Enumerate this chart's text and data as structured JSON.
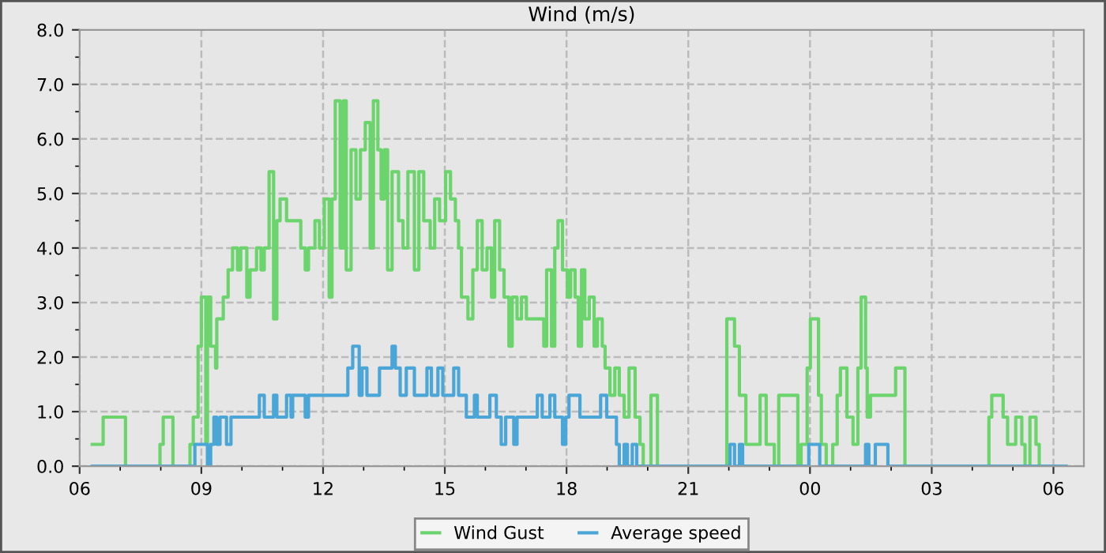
{
  "chart_data": {
    "type": "step",
    "title": "Wind (m/s)",
    "xlim": [
      6,
      30.75
    ],
    "ylim": [
      0,
      8
    ],
    "xticks": [
      {
        "value": 6,
        "label": "06"
      },
      {
        "value": 9,
        "label": "09"
      },
      {
        "value": 12,
        "label": "12"
      },
      {
        "value": 15,
        "label": "15"
      },
      {
        "value": 18,
        "label": "18"
      },
      {
        "value": 21,
        "label": "21"
      },
      {
        "value": 24,
        "label": "00"
      },
      {
        "value": 27,
        "label": "03"
      },
      {
        "value": 30,
        "label": "06"
      }
    ],
    "yticks": [
      {
        "value": 0,
        "label": "0.0"
      },
      {
        "value": 1,
        "label": "1.0"
      },
      {
        "value": 2,
        "label": "2.0"
      },
      {
        "value": 3,
        "label": "3.0"
      },
      {
        "value": 4,
        "label": "4.0"
      },
      {
        "value": 5,
        "label": "5.0"
      },
      {
        "value": 6,
        "label": "6.0"
      },
      {
        "value": 7,
        "label": "7.0"
      },
      {
        "value": 8,
        "label": "8.0"
      }
    ],
    "grid": true,
    "legend": "bottom",
    "line_style": "solid",
    "marker": "none",
    "series": [
      {
        "name": "Wind Gust",
        "color": "#6cd46c",
        "x": [
          6.31,
          6.58,
          7.13,
          7.98,
          8.06,
          8.3,
          8.72,
          8.8,
          8.92,
          9.0,
          9.11,
          9.15,
          9.23,
          9.35,
          9.38,
          9.54,
          9.66,
          9.77,
          9.89,
          9.97,
          10.12,
          10.2,
          10.36,
          10.47,
          10.55,
          10.67,
          10.78,
          10.86,
          10.94,
          11.1,
          11.45,
          11.56,
          11.64,
          11.8,
          11.91,
          12.03,
          12.15,
          12.22,
          12.3,
          12.42,
          12.5,
          12.57,
          12.69,
          12.81,
          12.92,
          13.04,
          13.16,
          13.24,
          13.35,
          13.43,
          13.51,
          13.59,
          13.7,
          13.86,
          13.97,
          14.09,
          14.25,
          14.36,
          14.48,
          14.64,
          14.75,
          14.87,
          15.02,
          15.14,
          15.26,
          15.34,
          15.41,
          15.57,
          15.69,
          15.8,
          15.92,
          16.04,
          16.15,
          16.23,
          16.35,
          16.46,
          16.58,
          16.66,
          16.78,
          16.89,
          17.01,
          17.28,
          17.44,
          17.51,
          17.63,
          17.71,
          17.79,
          17.9,
          18.02,
          18.1,
          18.21,
          18.29,
          18.37,
          18.45,
          18.56,
          18.68,
          18.76,
          18.88,
          18.95,
          19.07,
          19.19,
          19.3,
          19.42,
          19.54,
          19.69,
          19.81,
          19.89,
          20.08,
          20.24,
          21.95,
          22.14,
          22.26,
          22.42,
          22.77,
          22.92,
          23.12,
          23.23,
          23.7,
          23.78,
          23.93,
          24.01,
          24.21,
          24.28,
          24.4,
          24.56,
          24.67,
          24.75,
          24.91,
          25.06,
          25.18,
          25.26,
          25.37,
          25.41,
          25.49,
          26.11,
          26.34,
          28.41,
          28.48,
          28.64,
          28.76,
          28.87,
          28.99,
          29.07,
          29.22,
          29.3,
          29.42,
          29.57,
          29.65,
          30.31
        ],
        "values": [
          0.4,
          0.9,
          0,
          0.4,
          0.9,
          0,
          0.4,
          0.9,
          2.2,
          3.1,
          0.4,
          3.1,
          2.2,
          1.8,
          2.7,
          3.1,
          3.6,
          4.0,
          3.6,
          4.0,
          3.1,
          3.6,
          4.0,
          3.6,
          4.0,
          5.4,
          2.7,
          4.5,
          4.9,
          4.5,
          4.0,
          3.6,
          4.0,
          4.5,
          4.0,
          4.9,
          3.1,
          4.9,
          6.7,
          4.0,
          6.7,
          3.6,
          5.8,
          4.9,
          5.8,
          6.3,
          4.0,
          6.7,
          5.8,
          4.9,
          5.8,
          3.6,
          5.4,
          4.5,
          4.0,
          5.4,
          3.6,
          5.4,
          4.5,
          4.0,
          4.9,
          4.5,
          5.4,
          4.9,
          4.5,
          4.0,
          3.1,
          2.7,
          3.6,
          4.5,
          3.6,
          4.0,
          3.1,
          4.5,
          3.6,
          3.1,
          2.2,
          3.1,
          2.7,
          3.1,
          2.7,
          2.7,
          2.2,
          3.6,
          2.2,
          4.0,
          4.5,
          3.6,
          3.1,
          3.6,
          3.1,
          2.2,
          3.6,
          2.7,
          3.1,
          2.2,
          2.7,
          2.2,
          1.8,
          1.3,
          1.8,
          1.3,
          0.9,
          1.8,
          0.9,
          0.4,
          0,
          1.3,
          0,
          2.7,
          2.2,
          1.3,
          0.4,
          1.3,
          0.4,
          0,
          1.3,
          0,
          0.4,
          1.8,
          2.7,
          1.3,
          0.4,
          0,
          0.4,
          1.3,
          1.8,
          0.9,
          0.4,
          1.8,
          3.1,
          1.8,
          0.9,
          1.3,
          1.8,
          0,
          0.9,
          1.3,
          1.3,
          0.9,
          0.4,
          0.4,
          0.9,
          0.4,
          0,
          0.9,
          0.4,
          0,
          0
        ]
      },
      {
        "name": "Average speed",
        "color": "#4aa6d6",
        "x": [
          6.31,
          8.84,
          9.15,
          9.23,
          9.31,
          9.38,
          9.46,
          9.62,
          9.73,
          10.43,
          10.55,
          10.78,
          10.86,
          11.1,
          11.21,
          11.25,
          11.56,
          11.64,
          12.61,
          12.73,
          12.89,
          12.96,
          13.08,
          13.39,
          13.7,
          13.78,
          13.9,
          14.05,
          14.25,
          14.56,
          14.67,
          14.83,
          14.95,
          15.22,
          15.34,
          15.53,
          15.73,
          15.8,
          16.11,
          16.27,
          16.39,
          16.5,
          16.7,
          16.78,
          17.28,
          17.4,
          17.59,
          17.71,
          17.9,
          17.98,
          18.06,
          18.33,
          18.84,
          18.99,
          19.23,
          19.3,
          19.42,
          19.5,
          19.62,
          19.73,
          22.03,
          22.14,
          22.26,
          22.34,
          23.97,
          24.24,
          25.37,
          25.45,
          25.61,
          25.92,
          30.31
        ],
        "values": [
          0,
          0.4,
          0,
          0.4,
          0.9,
          0.4,
          0.9,
          0.4,
          0.9,
          1.3,
          0.9,
          1.3,
          0.9,
          1.3,
          0.9,
          1.3,
          0.9,
          1.3,
          1.8,
          2.2,
          1.3,
          1.8,
          1.3,
          1.8,
          2.2,
          1.8,
          1.3,
          1.8,
          1.3,
          1.8,
          1.3,
          1.8,
          1.3,
          1.8,
          1.3,
          0.9,
          1.3,
          0.9,
          1.3,
          0.9,
          0.4,
          0.9,
          0.4,
          0.9,
          1.3,
          0.9,
          1.3,
          0.9,
          0.4,
          0.9,
          1.3,
          0.9,
          1.3,
          0.9,
          0.4,
          0,
          0.4,
          0,
          0.4,
          0,
          0.4,
          0,
          0.4,
          0,
          0.4,
          0,
          0.4,
          0,
          0.4,
          0,
          0
        ]
      }
    ]
  }
}
